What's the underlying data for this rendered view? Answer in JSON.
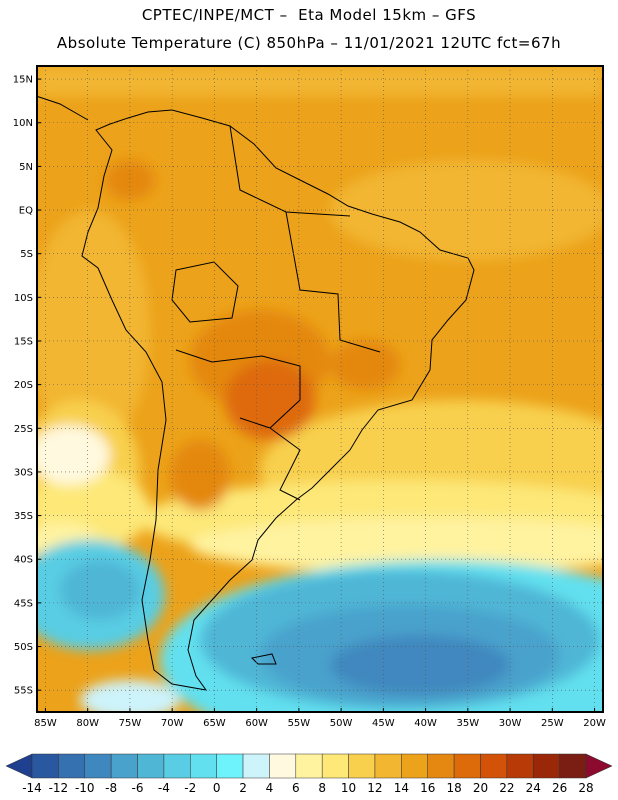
{
  "header": {
    "line1": "CPTEC/INPE/MCT –  Eta Model 15km – GFS",
    "line2": "Absolute Temperature (C) 850hPa – 11/01/2021 12UTC fct=67h"
  },
  "map": {
    "lat_labels": [
      "15N",
      "10N",
      "5N",
      "EQ",
      "5S",
      "10S",
      "15S",
      "20S",
      "25S",
      "30S",
      "35S",
      "40S",
      "45S",
      "50S",
      "55S"
    ],
    "lon_labels": [
      "85W",
      "80W",
      "75W",
      "70W",
      "65W",
      "60W",
      "55W",
      "50W",
      "45W",
      "40W",
      "35W",
      "30W",
      "25W",
      "20W"
    ],
    "lat_values": [
      15,
      10,
      5,
      0,
      -5,
      -10,
      -15,
      -20,
      -25,
      -30,
      -35,
      -40,
      -45,
      -50,
      -55
    ],
    "lon_values": [
      -85,
      -80,
      -75,
      -70,
      -65,
      -60,
      -55,
      -50,
      -45,
      -40,
      -35,
      -30,
      -25,
      -20
    ],
    "extent": {
      "lon_min": -86,
      "lon_max": -19,
      "lat_min": -57.5,
      "lat_max": 16.5
    }
  },
  "colorbar": {
    "labels": [
      "-14",
      "-12",
      "-10",
      "-8",
      "-6",
      "-4",
      "-2",
      "0",
      "2",
      "4",
      "6",
      "8",
      "10",
      "12",
      "14",
      "16",
      "18",
      "20",
      "22",
      "24",
      "26",
      "28"
    ],
    "colors": [
      "#1f3f8f",
      "#2a58a0",
      "#3570b0",
      "#3f88bf",
      "#49a2cc",
      "#4fb6d6",
      "#58cde3",
      "#62e0ef",
      "#6ef2fb",
      "#cdf3fb",
      "#fff9df",
      "#fff3a0",
      "#fde878",
      "#f8d04e",
      "#f2b630",
      "#eca21a",
      "#e48811",
      "#de6b0a",
      "#d25208",
      "#b83a06",
      "#9a2808",
      "#7a1e14",
      "#8c0a2e"
    ]
  }
}
